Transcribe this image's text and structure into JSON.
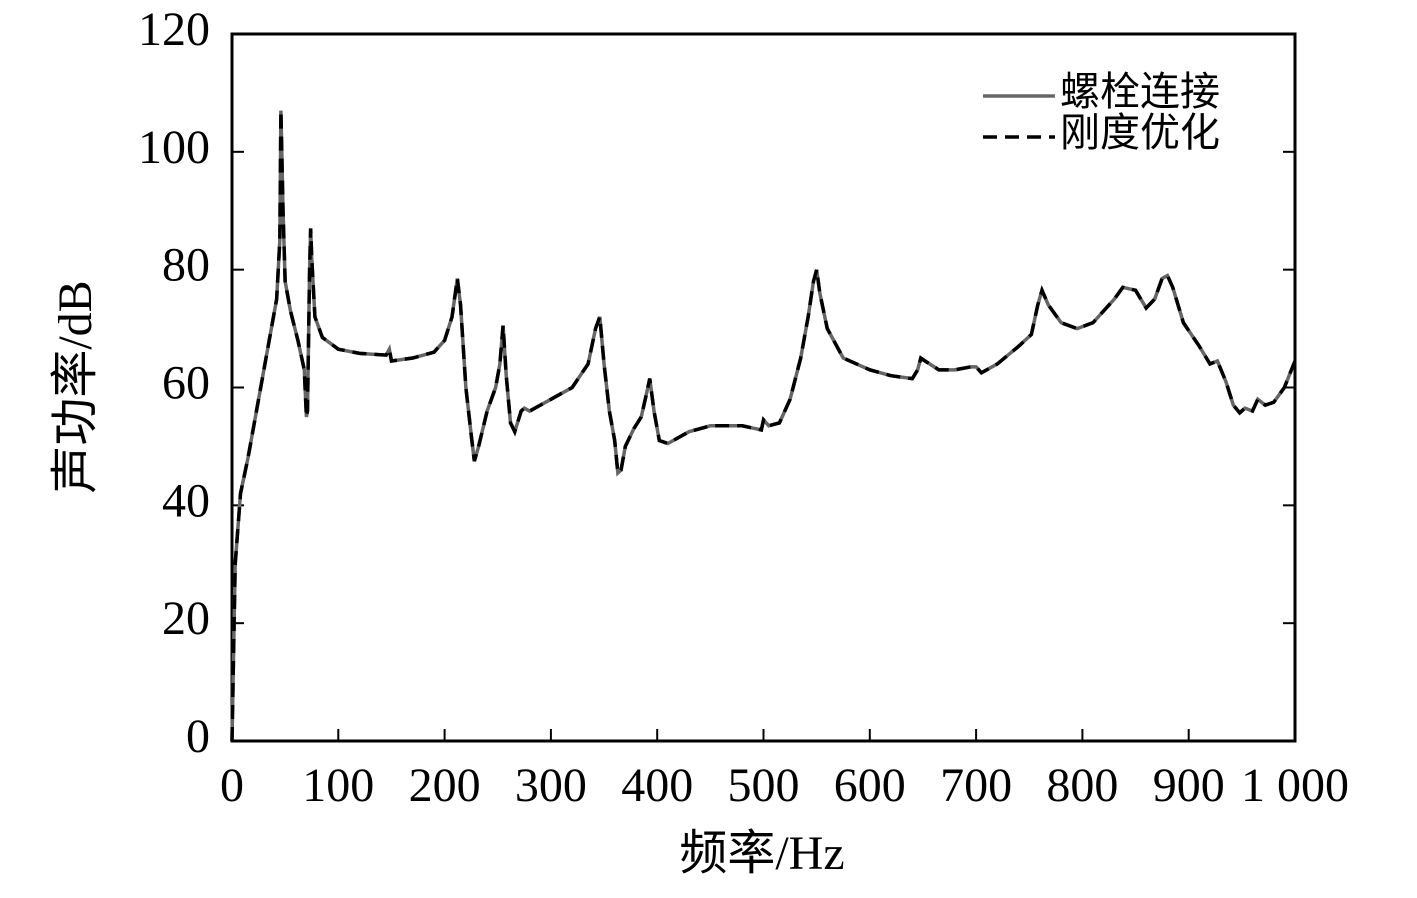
{
  "chart_data": {
    "type": "line",
    "xlabel": "频率/Hz",
    "ylabel": "声功率/dB",
    "x": [
      0,
      3,
      8,
      15,
      25,
      35,
      42,
      45,
      46,
      48,
      50,
      55,
      62,
      68,
      70,
      71,
      73,
      74,
      75,
      78,
      85,
      100,
      120,
      145,
      148,
      150,
      170,
      190,
      200,
      207,
      212,
      215,
      220,
      225,
      228,
      232,
      240,
      248,
      252,
      255,
      258,
      262,
      266,
      272,
      275,
      280,
      300,
      320,
      335,
      342,
      346,
      350,
      355,
      360,
      363,
      366,
      370,
      378,
      385,
      390,
      393,
      397,
      402,
      410,
      430,
      450,
      480,
      498,
      500,
      505,
      515,
      525,
      535,
      542,
      547,
      550,
      553,
      560,
      575,
      600,
      620,
      640,
      645,
      648,
      652,
      665,
      680,
      695,
      700,
      705,
      720,
      740,
      752,
      758,
      762,
      768,
      780,
      795,
      810,
      830,
      838,
      850,
      860,
      868,
      875,
      880,
      885,
      895,
      910,
      920,
      927,
      935,
      942,
      948,
      953,
      960,
      965,
      972,
      980,
      990,
      1000
    ],
    "series": [
      {
        "name": "螺栓连接",
        "color": "#666666",
        "dash": false,
        "values": [
          0,
          30,
          42,
          48,
          58,
          68,
          75,
          85,
          107,
          90,
          78,
          73,
          68,
          63,
          55,
          56,
          80,
          87,
          82,
          72,
          68.5,
          66.5,
          65.8,
          65.5,
          66.5,
          64.5,
          65,
          66,
          68,
          72,
          78.5,
          74,
          60,
          52,
          47.5,
          50,
          56,
          60,
          64,
          70.5,
          62,
          54,
          52.5,
          56,
          56.5,
          56,
          58,
          60,
          64,
          70,
          72,
          64,
          56,
          51,
          45.5,
          46,
          50,
          53,
          55,
          59,
          61.5,
          56,
          51,
          50.5,
          52.5,
          53.5,
          53.5,
          52.8,
          54.5,
          53.5,
          54,
          58,
          65,
          72,
          78,
          80,
          76,
          70,
          65,
          63,
          62,
          61.5,
          63,
          65,
          64.5,
          63,
          63,
          63.5,
          63.5,
          62.5,
          64,
          67,
          69,
          74,
          76.5,
          74,
          71,
          70,
          71,
          75,
          77,
          76.5,
          73.5,
          75,
          78.5,
          79,
          77,
          71,
          67,
          64,
          64.5,
          61,
          57,
          55.7,
          56.5,
          56,
          58,
          57,
          57.5,
          60,
          64.5
        ]
      },
      {
        "name": "刚度优化",
        "color": "#000000",
        "dash": true,
        "values": [
          0,
          30,
          42,
          48,
          58,
          68,
          75,
          85,
          107,
          90,
          78,
          73,
          68,
          63,
          55,
          56,
          80,
          87,
          82,
          72,
          68.5,
          66.5,
          65.8,
          65.5,
          66.5,
          64.5,
          65,
          66,
          68,
          72,
          78.5,
          74,
          60,
          52,
          47.5,
          50,
          56,
          60,
          64,
          70.5,
          62,
          54,
          52.5,
          56,
          56.5,
          56,
          58,
          60,
          64,
          70,
          72,
          64,
          56,
          51,
          45.5,
          46,
          50,
          53,
          55,
          59,
          61.5,
          56,
          51,
          50.5,
          52.5,
          53.5,
          53.5,
          52.8,
          54.5,
          53.5,
          54,
          58,
          65,
          72,
          78,
          80,
          76,
          70,
          65,
          63,
          62,
          61.5,
          63,
          65,
          64.5,
          63,
          63,
          63.5,
          63.5,
          62.5,
          64,
          67,
          69,
          74,
          76.5,
          74,
          71,
          70,
          71,
          75,
          77,
          76.5,
          73.5,
          75,
          78.5,
          79,
          77,
          71,
          67,
          64,
          64.5,
          61,
          57,
          55.7,
          56.5,
          56,
          58,
          57,
          57.5,
          60,
          64.5
        ]
      }
    ],
    "xlim": [
      0,
      1000
    ],
    "xticks": [
      0,
      100,
      200,
      300,
      400,
      500,
      600,
      700,
      800,
      900,
      {
        "value": 1000,
        "label": "1 000"
      }
    ],
    "ylim": [
      0,
      120
    ],
    "yticks": [
      0,
      20,
      40,
      60,
      80,
      100,
      120
    ],
    "legend": "upper right"
  }
}
